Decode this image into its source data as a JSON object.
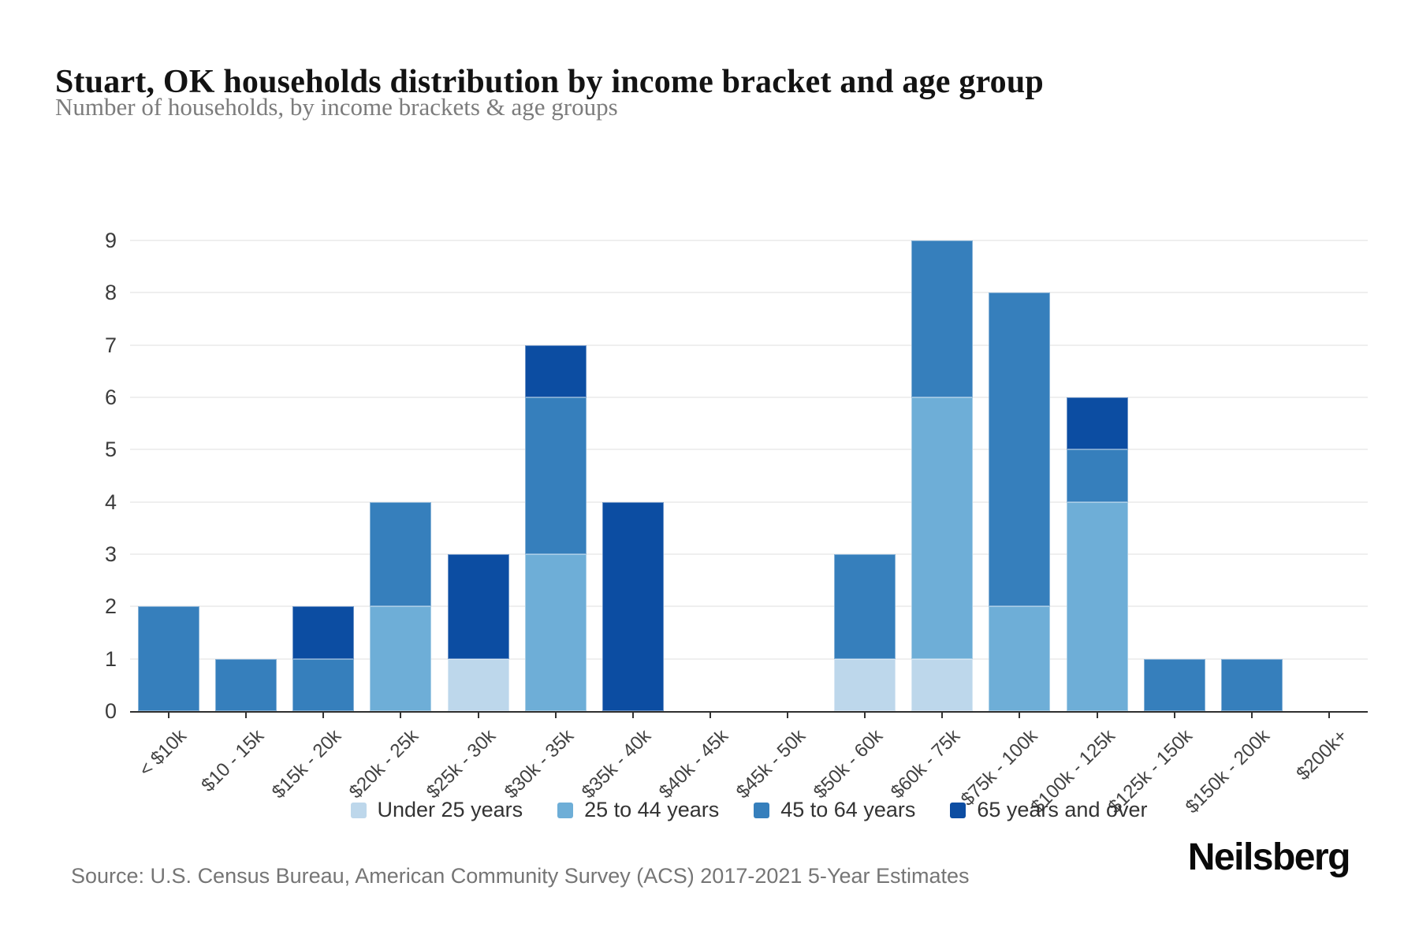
{
  "header": {
    "title": "Stuart, OK households distribution by income bracket and age group",
    "subtitle": "Number of households, by income brackets & age groups"
  },
  "chart_data": {
    "type": "bar",
    "stacked": true,
    "title": "Stuart, OK households distribution by income bracket and age group",
    "subtitle": "Number of households, by income brackets & age groups",
    "xlabel": "",
    "ylabel": "",
    "ylim": [
      0,
      9
    ],
    "yticks": [
      0,
      1,
      2,
      3,
      4,
      5,
      6,
      7,
      8,
      9
    ],
    "grid": "horizontal",
    "legend_position": "bottom",
    "categories": [
      "< $10k",
      "$10 - 15k",
      "$15k - 20k",
      "$20k - 25k",
      "$25k - 30k",
      "$30k - 35k",
      "$35k - 40k",
      "$40k - 45k",
      "$45k - 50k",
      "$50k - 60k",
      "$60k - 75k",
      "$75k - 100k",
      "$100k - 125k",
      "$125k - 150k",
      "$150k - 200k",
      "$200k+"
    ],
    "series": [
      {
        "name": "Under 25 years",
        "color": "#bdd7eb",
        "values": [
          0,
          0,
          0,
          0,
          1,
          0,
          0,
          0,
          0,
          1,
          1,
          0,
          0,
          0,
          0,
          0
        ]
      },
      {
        "name": "25 to 44 years",
        "color": "#6eaed7",
        "values": [
          0,
          0,
          0,
          2,
          0,
          3,
          0,
          0,
          0,
          0,
          5,
          2,
          4,
          0,
          0,
          0
        ]
      },
      {
        "name": "45 to 64 years",
        "color": "#367fbc",
        "values": [
          2,
          1,
          1,
          2,
          0,
          3,
          0,
          0,
          0,
          2,
          3,
          6,
          1,
          1,
          1,
          0
        ]
      },
      {
        "name": "65 years and over",
        "color": "#0c4da2",
        "values": [
          0,
          0,
          1,
          0,
          2,
          1,
          4,
          0,
          0,
          0,
          0,
          0,
          1,
          0,
          0,
          0
        ]
      }
    ],
    "totals": [
      2,
      1,
      2,
      4,
      3,
      7,
      4,
      0,
      0,
      3,
      9,
      8,
      6,
      1,
      1,
      0
    ]
  },
  "footer": {
    "source": "Source: U.S. Census Bureau, American Community Survey (ACS) 2017-2021 5-Year Estimates",
    "brand": "Neilsberg"
  }
}
